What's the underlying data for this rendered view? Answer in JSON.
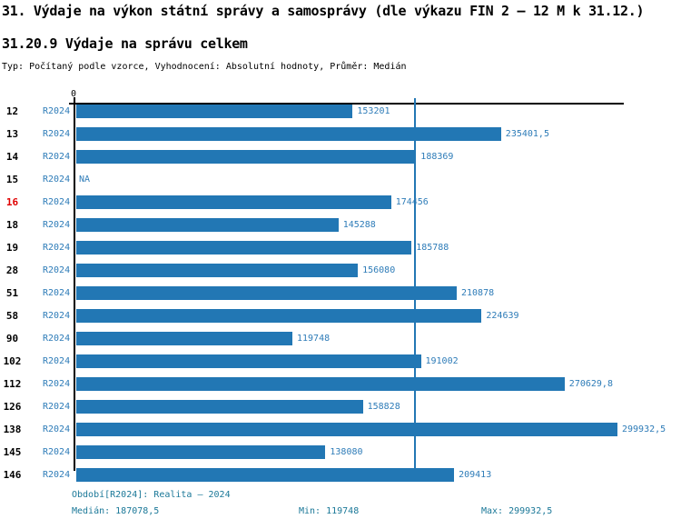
{
  "page": {
    "title": "31. Výdaje na výkon státní správy a samosprávy (dle výkazu FIN 2 – 12 M k 31.12.)",
    "subtitle": "31.20.9 Výdaje na správu celkem",
    "type_line": "Typ: Počítaný podle vzorce, Vyhodnocení: Absolutní hodnoty, Průměr: Medián"
  },
  "chart_data": {
    "type": "bar",
    "orientation": "horizontal",
    "title": "31.20.9 Výdaje na správu celkem",
    "series_label": "R2024",
    "axis": {
      "position": "top",
      "origin_tick_label": "0",
      "xlim": [
        0,
        300000
      ],
      "grid": false
    },
    "median": 187078.5,
    "highlight_category": "16",
    "na_label": "NA",
    "categories": [
      "12",
      "13",
      "14",
      "15",
      "16",
      "18",
      "19",
      "28",
      "51",
      "58",
      "90",
      "102",
      "112",
      "126",
      "138",
      "145",
      "146"
    ],
    "rows": [
      {
        "id": "12",
        "value": 153201,
        "label": "153201",
        "highlight": false
      },
      {
        "id": "13",
        "value": 235401.5,
        "label": "235401,5",
        "highlight": false
      },
      {
        "id": "14",
        "value": 188369,
        "label": "188369",
        "highlight": false
      },
      {
        "id": "15",
        "value": null,
        "label": "NA",
        "highlight": false
      },
      {
        "id": "16",
        "value": 174456,
        "label": "174456",
        "highlight": true
      },
      {
        "id": "18",
        "value": 145288,
        "label": "145288",
        "highlight": false
      },
      {
        "id": "19",
        "value": 185788,
        "label": "185788",
        "highlight": false
      },
      {
        "id": "28",
        "value": 156080,
        "label": "156080",
        "highlight": false
      },
      {
        "id": "51",
        "value": 210878,
        "label": "210878",
        "highlight": false
      },
      {
        "id": "58",
        "value": 224639,
        "label": "224639",
        "highlight": false
      },
      {
        "id": "90",
        "value": 119748,
        "label": "119748",
        "highlight": false
      },
      {
        "id": "102",
        "value": 191002,
        "label": "191002",
        "highlight": false
      },
      {
        "id": "112",
        "value": 270629.8,
        "label": "270629,8",
        "highlight": false
      },
      {
        "id": "126",
        "value": 158828,
        "label": "158828",
        "highlight": false
      },
      {
        "id": "138",
        "value": 299932.5,
        "label": "299932,5",
        "highlight": false
      },
      {
        "id": "145",
        "value": 138080,
        "label": "138080",
        "highlight": false
      },
      {
        "id": "146",
        "value": 209413,
        "label": "209413",
        "highlight": false
      }
    ],
    "colors": {
      "bar": "#2277b4",
      "median_line": "#2277b4",
      "label_blue": "#2e7cb8",
      "highlight_red": "#e00000",
      "footer_text": "#1b7898",
      "axis_black": "#000000"
    }
  },
  "footer": {
    "period": "Období[R2024]: Realita – 2024",
    "median": "Medián: 187078,5",
    "min": "Min: 119748",
    "max": "Max: 299932,5"
  }
}
